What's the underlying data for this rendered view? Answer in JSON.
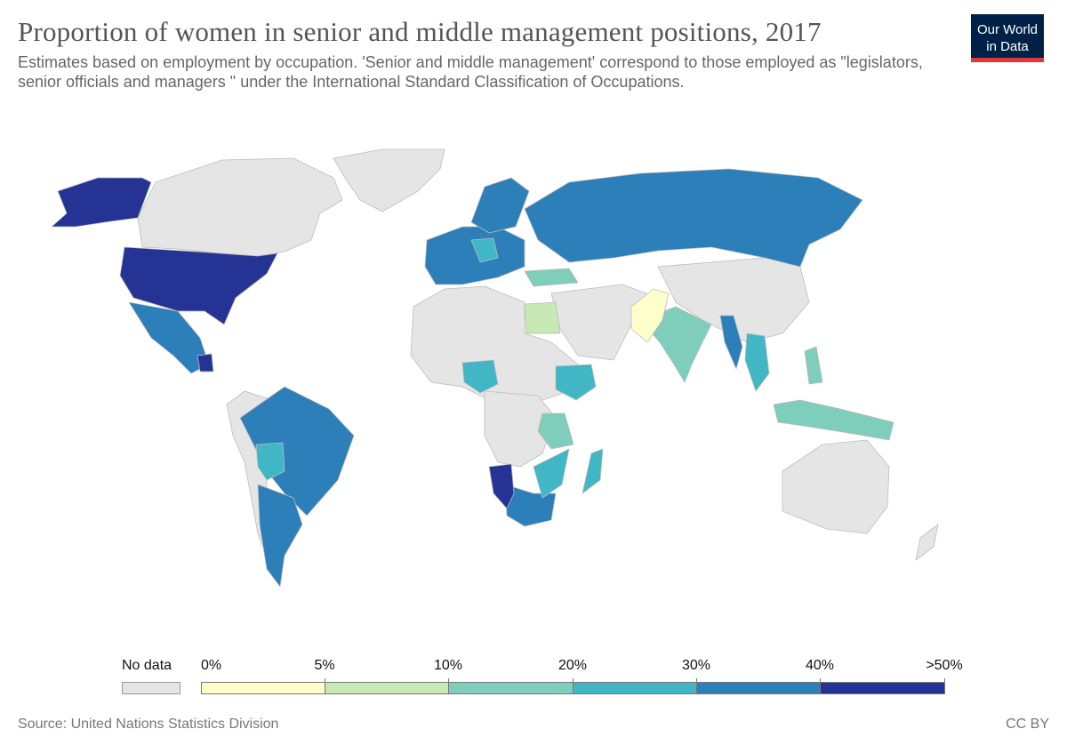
{
  "title": "Proportion of women in senior and middle management positions, 2017",
  "subtitle": "Estimates based on employment by occupation. 'Senior and middle management' correspond to those employed as \"legislators, senior officials and managers \" under the International Standard Classification of Occupations.",
  "logo": {
    "line1": "Our World",
    "line2": "in Data"
  },
  "legend": {
    "no_data_label": "No data",
    "tick_labels": [
      "0%",
      "5%",
      "10%",
      "20%",
      "30%",
      "40%",
      ">50%"
    ],
    "bins": [
      {
        "range": "0–5%",
        "color": "#ffffcc"
      },
      {
        "range": "5–10%",
        "color": "#c7e9b4"
      },
      {
        "range": "10–20%",
        "color": "#7fcdbb"
      },
      {
        "range": "20–30%",
        "color": "#41b6c4"
      },
      {
        "range": "30–40%",
        "color": "#2c7fb8"
      },
      {
        "range": ">40%",
        "color": "#253494"
      }
    ],
    "no_data_color": "#e5e5e5"
  },
  "footer": {
    "source": "Source: United Nations Statistics Division",
    "license": "CC BY"
  }
}
